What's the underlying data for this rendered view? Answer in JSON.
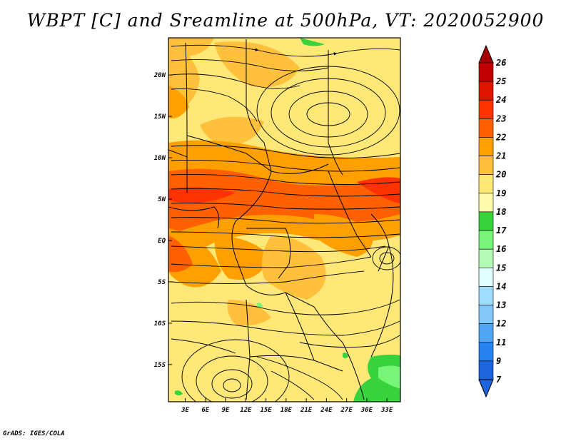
{
  "title": "WBPT [C] and Sreamline at 500hPa, VT: 2020052900",
  "footer": "GrADS: IGES/COLA",
  "map": {
    "lon_labels": [
      "3E",
      "6E",
      "9E",
      "12E",
      "15E",
      "18E",
      "21E",
      "24E",
      "27E",
      "30E",
      "33E"
    ],
    "lat_labels": [
      "20N",
      "15N",
      "10N",
      "5N",
      "EQ",
      "5S",
      "10S",
      "15S"
    ],
    "lon_values": [
      3,
      6,
      9,
      12,
      15,
      18,
      21,
      24,
      27,
      30,
      33
    ],
    "lat_values": [
      20,
      15,
      10,
      5,
      0,
      -5,
      -10,
      -15
    ],
    "lon_range": [
      0.5,
      35
    ],
    "lat_range": [
      -19.5,
      24.5
    ]
  },
  "colorbar": {
    "labels": [
      "7",
      "9",
      "11",
      "12",
      "13",
      "14",
      "15",
      "16",
      "17",
      "18",
      "19",
      "20",
      "21",
      "22",
      "23",
      "24",
      "25",
      "26"
    ],
    "colors": [
      "#1e64dc",
      "#2882f0",
      "#50a5f5",
      "#82c8fa",
      "#a0dcff",
      "#e1ffff",
      "#b4fab4",
      "#78f578",
      "#37d23c",
      "#fffaaa",
      "#ffe878",
      "#ffc03c",
      "#ffa000",
      "#ff6000",
      "#ff3200",
      "#e11400",
      "#c00000",
      "#a50000"
    ]
  },
  "colors": {
    "frame": "#000000",
    "stream": "#000000",
    "boundary": "#000000"
  }
}
